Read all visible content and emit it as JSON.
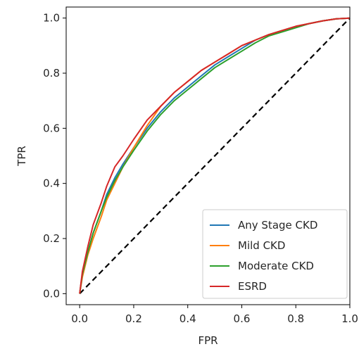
{
  "chart_data": {
    "type": "line",
    "title": "",
    "xlabel": "FPR",
    "ylabel": "TPR",
    "xlim": [
      -0.05,
      1.0
    ],
    "ylim": [
      -0.04,
      1.04
    ],
    "grid": false,
    "legend_position": "lower-right",
    "x_ticks": [
      "0.0",
      "0.2",
      "0.4",
      "0.6",
      "0.8",
      "1.0"
    ],
    "y_ticks": [
      "0.0",
      "0.2",
      "0.4",
      "0.6",
      "0.8",
      "1.0"
    ],
    "series": [
      {
        "name": "Any Stage CKD",
        "color": "#1f77b4",
        "x": [
          0.0,
          0.01,
          0.03,
          0.05,
          0.08,
          0.1,
          0.13,
          0.16,
          0.2,
          0.25,
          0.3,
          0.35,
          0.4,
          0.45,
          0.5,
          0.55,
          0.6,
          0.65,
          0.7,
          0.75,
          0.8,
          0.85,
          0.9,
          0.95,
          1.0
        ],
        "y": [
          0.0,
          0.07,
          0.15,
          0.22,
          0.3,
          0.36,
          0.42,
          0.47,
          0.53,
          0.6,
          0.66,
          0.71,
          0.75,
          0.79,
          0.83,
          0.86,
          0.89,
          0.92,
          0.94,
          0.955,
          0.97,
          0.98,
          0.99,
          0.997,
          1.0
        ]
      },
      {
        "name": "Mild CKD",
        "color": "#ff7f0e",
        "x": [
          0.0,
          0.01,
          0.03,
          0.05,
          0.08,
          0.1,
          0.13,
          0.16,
          0.2,
          0.25,
          0.3,
          0.35,
          0.4,
          0.45,
          0.5,
          0.55,
          0.6,
          0.65,
          0.7,
          0.75,
          0.8,
          0.85,
          0.9,
          0.95,
          1.0
        ],
        "y": [
          0.0,
          0.06,
          0.14,
          0.2,
          0.28,
          0.34,
          0.4,
          0.46,
          0.53,
          0.61,
          0.68,
          0.73,
          0.77,
          0.81,
          0.84,
          0.87,
          0.9,
          0.92,
          0.94,
          0.955,
          0.97,
          0.98,
          0.99,
          0.997,
          1.0
        ]
      },
      {
        "name": "Moderate CKD",
        "color": "#2ca02c",
        "x": [
          0.0,
          0.01,
          0.03,
          0.05,
          0.08,
          0.1,
          0.13,
          0.16,
          0.2,
          0.25,
          0.3,
          0.35,
          0.4,
          0.45,
          0.5,
          0.55,
          0.6,
          0.65,
          0.7,
          0.75,
          0.8,
          0.85,
          0.9,
          0.95,
          1.0
        ],
        "y": [
          0.0,
          0.07,
          0.15,
          0.22,
          0.3,
          0.35,
          0.41,
          0.46,
          0.52,
          0.59,
          0.65,
          0.7,
          0.74,
          0.78,
          0.82,
          0.85,
          0.88,
          0.91,
          0.935,
          0.95,
          0.965,
          0.98,
          0.99,
          0.997,
          1.0
        ]
      },
      {
        "name": "ESRD",
        "color": "#d62728",
        "x": [
          0.0,
          0.01,
          0.03,
          0.05,
          0.08,
          0.1,
          0.13,
          0.16,
          0.2,
          0.25,
          0.3,
          0.35,
          0.4,
          0.45,
          0.5,
          0.55,
          0.6,
          0.65,
          0.7,
          0.75,
          0.8,
          0.85,
          0.9,
          0.95,
          1.0
        ],
        "y": [
          0.0,
          0.08,
          0.17,
          0.25,
          0.33,
          0.39,
          0.46,
          0.5,
          0.56,
          0.63,
          0.68,
          0.73,
          0.77,
          0.81,
          0.84,
          0.87,
          0.9,
          0.92,
          0.94,
          0.955,
          0.97,
          0.98,
          0.99,
          0.997,
          1.0
        ]
      }
    ],
    "reference_line": {
      "x": [
        0.0,
        1.0
      ],
      "y": [
        0.0,
        1.0
      ],
      "color": "#000000",
      "style": "dashed"
    }
  }
}
